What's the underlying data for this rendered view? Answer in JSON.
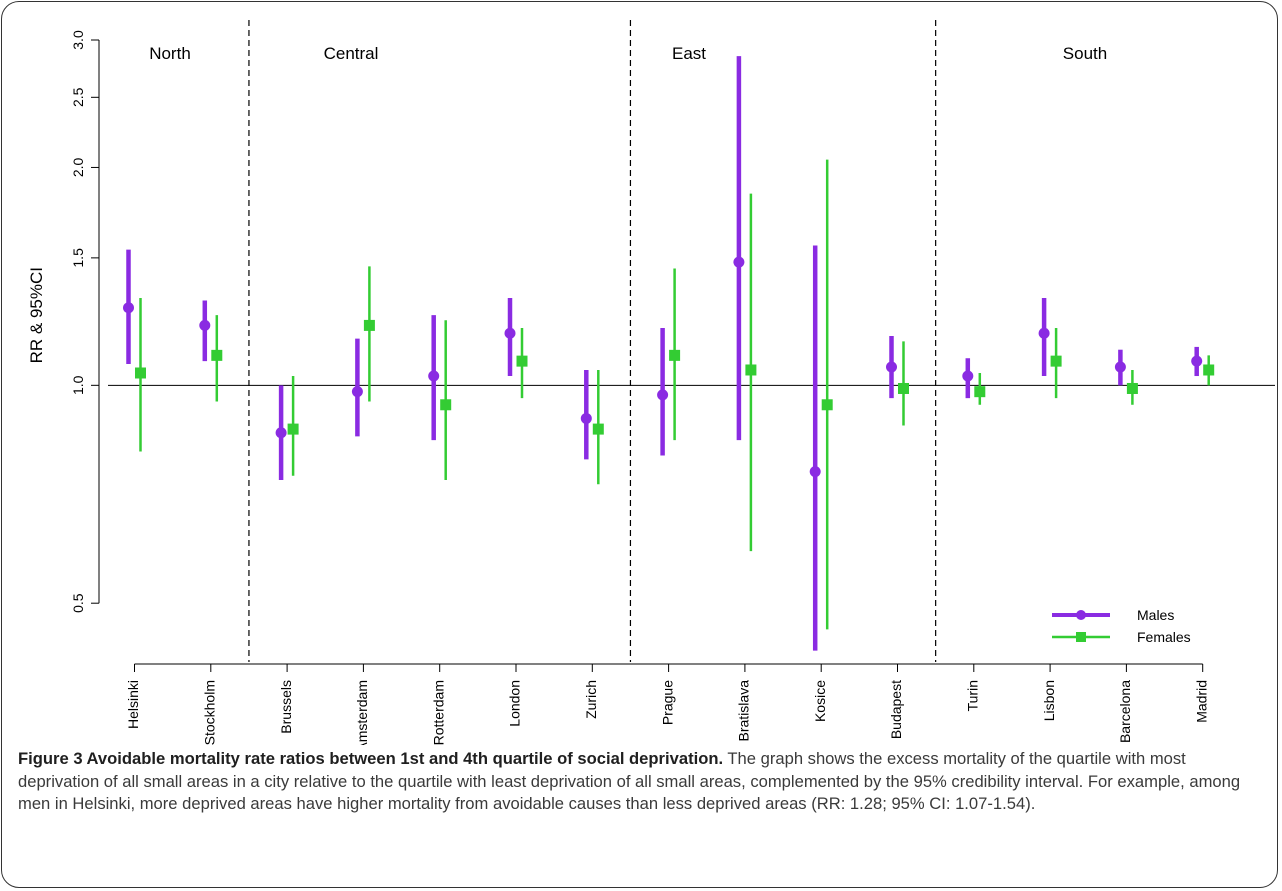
{
  "chart_data": {
    "type": "scatter",
    "ylabel": "RR & 95%CI",
    "y_scale": "log",
    "ylim": [
      0.42,
      3.0
    ],
    "y_ticks": [
      0.5,
      1.0,
      1.5,
      2.0,
      2.5,
      3.0
    ],
    "y_tick_labels": [
      "0.5",
      "1.0",
      "1.5",
      "2.0",
      "2.5",
      "3.0"
    ],
    "reference_line": 1.0,
    "categories": [
      "Helsinki",
      "Stockholm",
      "Brussels",
      "Amsterdam",
      "Rotterdam",
      "London",
      "Zurich",
      "Prague",
      "Bratislava",
      "Kosice",
      "Budapest",
      "Turin",
      "Lisbon",
      "Barcelona",
      "Madrid"
    ],
    "regions": [
      {
        "name": "North",
        "start": 0,
        "end": 1
      },
      {
        "name": "Central",
        "start": 2,
        "end": 6
      },
      {
        "name": "East",
        "start": 7,
        "end": 10
      },
      {
        "name": "South",
        "start": 11,
        "end": 14
      }
    ],
    "series": [
      {
        "name": "Males",
        "color": "#8a2be2",
        "marker": "circle",
        "values": [
          1.28,
          1.21,
          0.86,
          0.98,
          1.03,
          1.18,
          0.9,
          0.97,
          1.48,
          0.76,
          1.06,
          1.03,
          1.18,
          1.06,
          1.08
        ],
        "lower": [
          1.07,
          1.08,
          0.74,
          0.85,
          0.84,
          1.03,
          0.79,
          0.8,
          0.84,
          0.43,
          0.96,
          0.96,
          1.03,
          1.0,
          1.03
        ],
        "upper": [
          1.54,
          1.31,
          1.0,
          1.16,
          1.25,
          1.32,
          1.05,
          1.2,
          2.85,
          1.56,
          1.17,
          1.09,
          1.32,
          1.12,
          1.13
        ]
      },
      {
        "name": "Females",
        "color": "#33cc33",
        "marker": "square",
        "values": [
          1.04,
          1.1,
          0.87,
          1.21,
          0.94,
          1.08,
          0.87,
          1.1,
          1.05,
          0.94,
          0.99,
          0.98,
          1.08,
          0.99,
          1.05
        ],
        "lower": [
          0.81,
          0.95,
          0.75,
          0.95,
          0.74,
          0.96,
          0.73,
          0.84,
          0.59,
          0.46,
          0.88,
          0.94,
          0.96,
          0.94,
          1.0
        ],
        "upper": [
          1.32,
          1.25,
          1.03,
          1.46,
          1.23,
          1.2,
          1.05,
          1.45,
          1.84,
          2.05,
          1.15,
          1.04,
          1.2,
          1.05,
          1.1
        ]
      }
    ],
    "legend_position": "bottom-right"
  },
  "caption": {
    "lead": "Figure 3 Avoidable mortality rate ratios between 1st and 4th quartile of social deprivation.",
    "text": " The graph shows the excess mortality of the quartile with most deprivation of all small areas in a city relative to the quartile with least deprivation of all small areas, complemented by the 95% credibility interval. For example, among men in Helsinki, more deprived areas have higher mortality from avoidable causes than less deprived areas (RR: 1.28; 95% CI: 1.07-1.54)."
  }
}
